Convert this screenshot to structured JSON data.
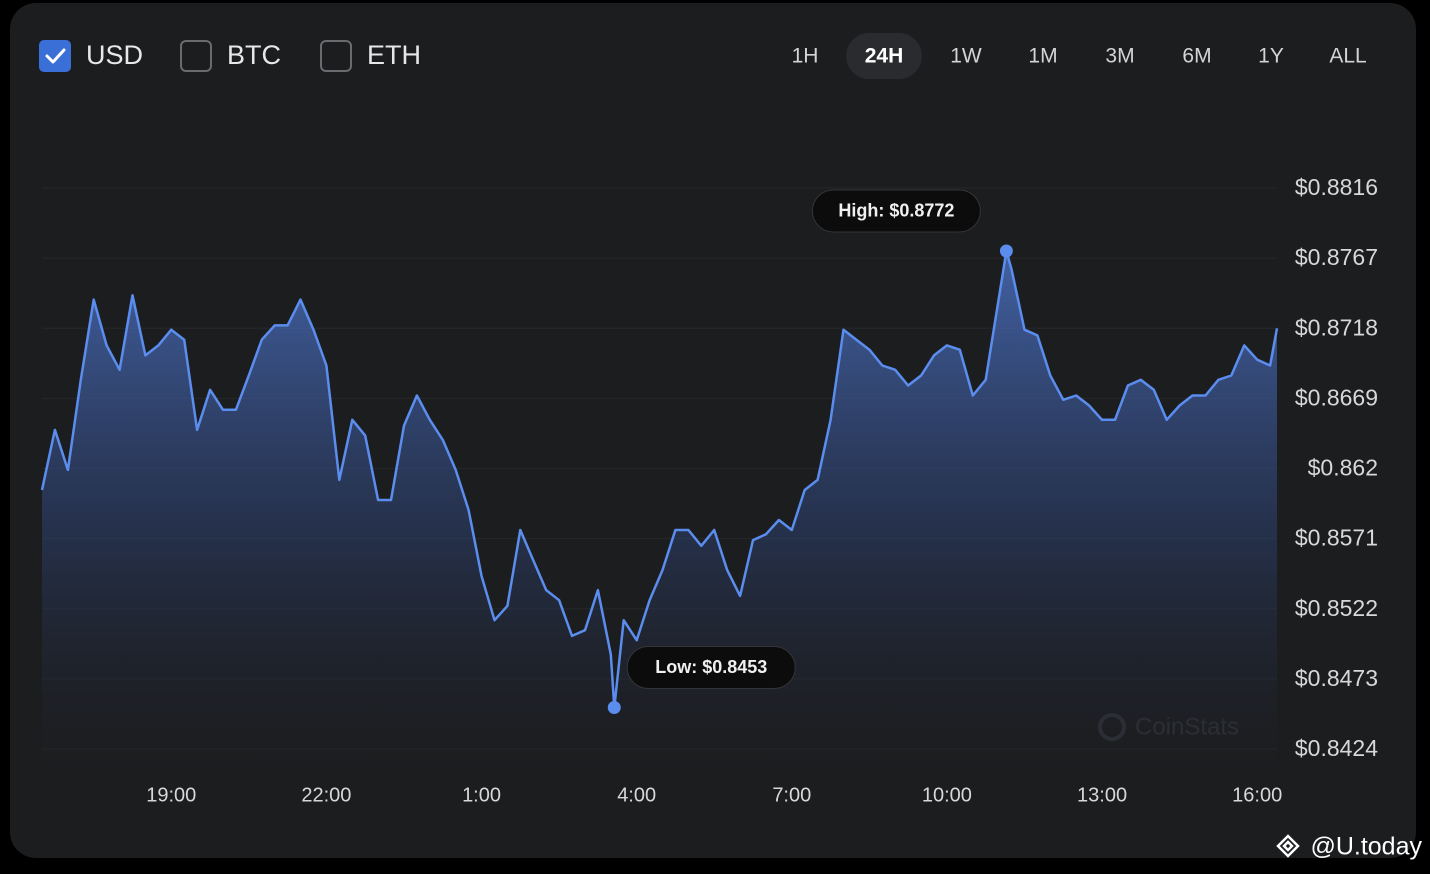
{
  "controls": {
    "currencies": [
      {
        "label": "USD",
        "checked": true
      },
      {
        "label": "BTC",
        "checked": false
      },
      {
        "label": "ETH",
        "checked": false
      }
    ],
    "ranges": [
      "1H",
      "24H",
      "1W",
      "1M",
      "3M",
      "6M",
      "1Y",
      "ALL"
    ],
    "selected_range": "24H"
  },
  "chart_data": {
    "type": "area",
    "color": "#5b8def",
    "x": [
      "16:30",
      "16:45",
      "17:00",
      "17:15",
      "17:30",
      "17:45",
      "18:00",
      "18:15",
      "18:30",
      "18:45",
      "19:00",
      "19:15",
      "19:30",
      "19:45",
      "20:00",
      "20:15",
      "20:30",
      "20:45",
      "21:00",
      "21:15",
      "21:30",
      "21:45",
      "22:00",
      "22:15",
      "22:30",
      "22:45",
      "23:00",
      "23:15",
      "23:30",
      "23:45",
      "0:00",
      "0:15",
      "0:30",
      "0:45",
      "1:00",
      "1:15",
      "1:30",
      "1:45",
      "2:00",
      "2:15",
      "2:30",
      "2:45",
      "3:00",
      "3:15",
      "3:30",
      "3:34",
      "3:45",
      "4:00",
      "4:15",
      "4:30",
      "4:45",
      "5:00",
      "5:15",
      "5:30",
      "5:45",
      "6:00",
      "6:15",
      "6:30",
      "6:45",
      "7:00",
      "7:15",
      "7:30",
      "7:45",
      "8:00",
      "8:15",
      "8:30",
      "8:45",
      "9:00",
      "9:15",
      "9:30",
      "9:45",
      "10:00",
      "10:15",
      "10:30",
      "10:45",
      "11:00",
      "11:09",
      "11:15",
      "11:30",
      "11:45",
      "12:00",
      "12:15",
      "12:30",
      "12:45",
      "13:00",
      "13:15",
      "13:30",
      "13:45",
      "14:00",
      "14:15",
      "14:30",
      "14:45",
      "15:00",
      "15:15",
      "15:30",
      "15:45",
      "16:00",
      "16:15",
      "16:23"
    ],
    "values": [
      0.8605,
      0.8647,
      0.8619,
      0.8682,
      0.8738,
      0.8706,
      0.8689,
      0.8741,
      0.8699,
      0.8706,
      0.8717,
      0.871,
      0.8647,
      0.8675,
      0.8661,
      0.8661,
      0.8685,
      0.871,
      0.872,
      0.872,
      0.8738,
      0.8717,
      0.8692,
      0.8612,
      0.8654,
      0.8643,
      0.8598,
      0.8598,
      0.865,
      0.8671,
      0.8654,
      0.864,
      0.8619,
      0.8591,
      0.8545,
      0.8514,
      0.8524,
      0.8577,
      0.8556,
      0.8535,
      0.8528,
      0.8503,
      0.8507,
      0.8535,
      0.849,
      0.8453,
      0.8514,
      0.85,
      0.8528,
      0.8549,
      0.8577,
      0.8577,
      0.8566,
      0.8577,
      0.8549,
      0.8531,
      0.857,
      0.8574,
      0.8584,
      0.8577,
      0.8605,
      0.8612,
      0.8654,
      0.8717,
      0.871,
      0.8703,
      0.8692,
      0.8689,
      0.8678,
      0.8685,
      0.8699,
      0.8706,
      0.8703,
      0.8671,
      0.8682,
      0.8738,
      0.8772,
      0.8759,
      0.8717,
      0.8713,
      0.8685,
      0.8668,
      0.8671,
      0.8664,
      0.8654,
      0.8654,
      0.8678,
      0.8682,
      0.8675,
      0.8654,
      0.8664,
      0.8671,
      0.8671,
      0.8682,
      0.8685,
      0.8706,
      0.8696,
      0.8692,
      0.8718
    ],
    "xticks": [
      "19:00",
      "22:00",
      "1:00",
      "4:00",
      "7:00",
      "10:00",
      "13:00",
      "16:00"
    ],
    "ylim": [
      0.8424,
      0.8816
    ],
    "yticks": [
      {
        "value": 0.8816,
        "label": "$0.8816"
      },
      {
        "value": 0.8767,
        "label": "$0.8767"
      },
      {
        "value": 0.8718,
        "label": "$0.8718"
      },
      {
        "value": 0.8669,
        "label": "$0.8669"
      },
      {
        "value": 0.862,
        "label": "$0.862"
      },
      {
        "value": 0.8571,
        "label": "$0.8571"
      },
      {
        "value": 0.8522,
        "label": "$0.8522"
      },
      {
        "value": 0.8473,
        "label": "$0.8473"
      },
      {
        "value": 0.8424,
        "label": "$0.8424"
      }
    ],
    "grid": true,
    "annotations": [
      {
        "text": "High: $0.8772",
        "x": "11:09",
        "y": 0.8772
      },
      {
        "text": "Low: $0.8453",
        "x": "3:34",
        "y": 0.8453
      }
    ]
  },
  "watermark": "CoinStats",
  "credit": "@U.today"
}
